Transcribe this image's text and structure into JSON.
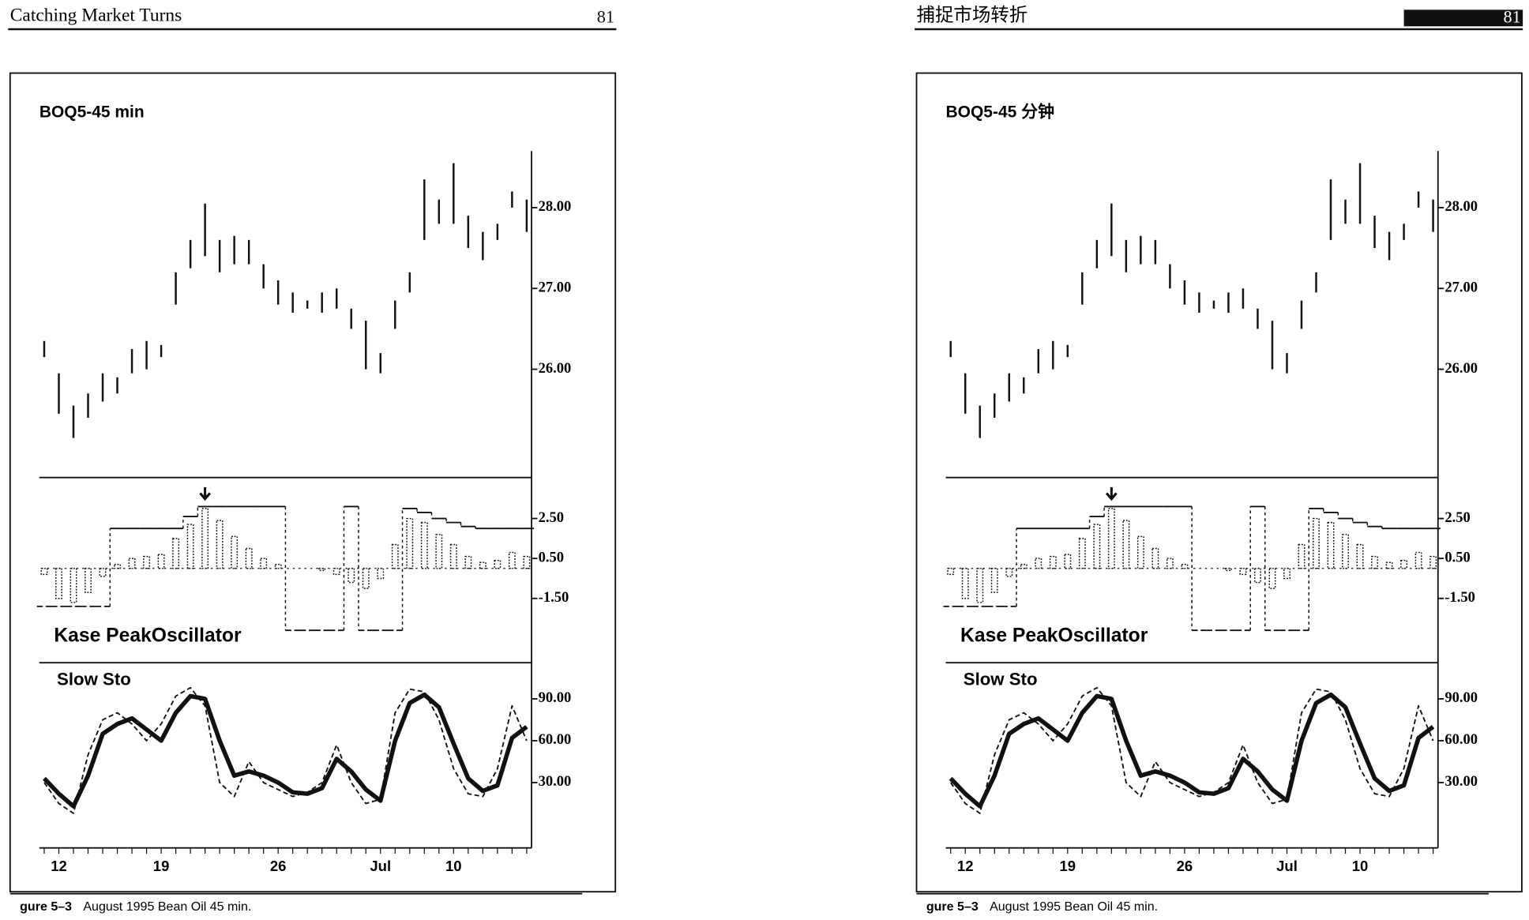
{
  "pages": [
    {
      "header": {
        "title": "Catching   Market   Turns",
        "page_number": "81"
      },
      "chart_title": "BOQ5-45 min",
      "caption": {
        "figure": "gure 5–3",
        "text": "August 1995 Bean Oil 45 min."
      }
    },
    {
      "header": {
        "title": "捕捉市场转折",
        "page_number": "81"
      },
      "chart_title": "BOQ5-45 分钟",
      "caption": {
        "figure": "gure 5–3",
        "text": "August 1995 Bean Oil 45 min."
      }
    }
  ],
  "chart": {
    "categories": [
      null,
      "12",
      null,
      null,
      null,
      null,
      null,
      null,
      "19",
      null,
      null,
      null,
      null,
      null,
      null,
      null,
      "26",
      null,
      null,
      null,
      null,
      null,
      null,
      "Jul",
      null,
      null,
      null,
      null,
      "10",
      null,
      null,
      null,
      null,
      null
    ],
    "price": {
      "high": [
        26.35,
        25.95,
        25.55,
        25.7,
        25.95,
        25.9,
        26.25,
        26.35,
        26.3,
        27.2,
        27.6,
        28.05,
        27.6,
        27.65,
        27.6,
        27.3,
        27.1,
        26.95,
        26.85,
        26.95,
        27.0,
        26.75,
        26.6,
        26.2,
        26.85,
        27.2,
        28.35,
        28.1,
        28.55,
        27.9,
        27.7,
        27.8,
        28.2,
        28.1
      ],
      "low": [
        26.15,
        25.45,
        25.15,
        25.4,
        25.6,
        25.7,
        25.95,
        26.0,
        26.15,
        26.8,
        27.25,
        27.4,
        27.2,
        27.3,
        27.3,
        27.0,
        26.8,
        26.7,
        26.75,
        26.7,
        26.75,
        26.5,
        26.0,
        25.95,
        26.5,
        26.95,
        27.6,
        27.8,
        27.8,
        27.5,
        27.35,
        27.6,
        28.0,
        27.7
      ],
      "ylim": [
        24.66,
        28.7
      ],
      "yticks": [
        {
          "value": 28,
          "label": "28.00"
        },
        {
          "value": 27,
          "label": "27.00"
        },
        {
          "value": 26,
          "label": "26.00"
        }
      ]
    },
    "oscillator": {
      "title": "Kase PeakOscillator",
      "values": [
        -0.3,
        -1.5,
        -1.7,
        -1.2,
        -0.4,
        0.2,
        0.5,
        0.6,
        0.7,
        1.5,
        2.2,
        3.0,
        2.4,
        1.6,
        1.0,
        0.5,
        0.2,
        0,
        0,
        -0.1,
        -0.3,
        -0.7,
        -1.0,
        -0.5,
        1.2,
        2.5,
        2.3,
        1.7,
        1.2,
        0.6,
        0.3,
        0.4,
        0.8,
        0.6
      ],
      "peak_line": [
        -1.9,
        -1.9,
        -1.9,
        -1.9,
        -1.9,
        2.0,
        2.0,
        2.0,
        2.0,
        2.0,
        2.6,
        3.1,
        3.1,
        3.1,
        3.1,
        3.1,
        3.1,
        -3.1,
        -3.1,
        -3.1,
        -3.1,
        3.1,
        -3.1,
        -3.1,
        -3.1,
        3.0,
        2.8,
        2.5,
        2.3,
        2.1,
        2.0,
        2.0,
        2.0,
        2.0
      ],
      "ylim": [
        -4.72,
        4.55
      ],
      "yticks": [
        {
          "value": 2.5,
          "label": "2.50"
        },
        {
          "value": 0.5,
          "label": "0.50"
        },
        {
          "value": -1.5,
          "label": "-1.50"
        }
      ]
    },
    "stochastic": {
      "title": "Slow Sto",
      "slow": [
        33,
        22,
        13,
        35,
        65,
        72,
        76,
        68,
        60,
        80,
        92,
        90,
        60,
        35,
        38,
        35,
        30,
        23,
        22,
        26,
        47,
        38,
        25,
        17,
        60,
        87,
        93,
        84,
        58,
        33,
        24,
        28,
        62,
        70
      ],
      "fast": [
        30,
        15,
        8,
        50,
        75,
        80,
        72,
        60,
        72,
        92,
        98,
        85,
        30,
        20,
        45,
        30,
        25,
        20,
        23,
        30,
        57,
        30,
        15,
        18,
        80,
        97,
        95,
        75,
        40,
        22,
        20,
        40,
        85,
        60
      ],
      "ylim": [
        -16.8,
        115.9
      ],
      "yticks": [
        {
          "value": 90,
          "label": "90.00"
        },
        {
          "value": 60,
          "label": "60.00"
        },
        {
          "value": 30,
          "label": "30.00"
        }
      ]
    }
  }
}
